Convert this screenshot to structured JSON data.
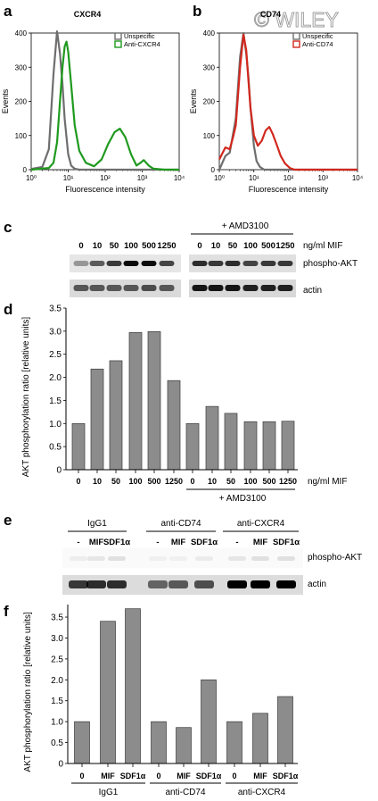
{
  "watermark": "© WILEY",
  "panel_labels": {
    "a": "a",
    "b": "b",
    "c": "c",
    "d": "d",
    "e": "e",
    "f": "f"
  },
  "colors": {
    "unspecific": "#6e6e6e",
    "anti_cxcr4": "#1f9a1f",
    "anti_cd74": "#d2281e",
    "bar": "#8c8c8c"
  },
  "chart_data": [
    {
      "id": "a",
      "type": "line",
      "title": "CXCR4",
      "xlabel": "Fluorescence intensity",
      "ylabel": "Events",
      "xscale": "log",
      "xlim": [
        1,
        10000
      ],
      "ylim": [
        0,
        400
      ],
      "x_ticks": [
        "10⁰",
        "10¹",
        "10²",
        "10³",
        "10⁴"
      ],
      "y_ticks": [
        "0",
        "100",
        "200",
        "300",
        "400"
      ],
      "legend_position": "top-right",
      "series": [
        {
          "name": "Unspecific",
          "color": "#6e6e6e",
          "points": [
            [
              1,
              2
            ],
            [
              2,
              8
            ],
            [
              3,
              60
            ],
            [
              4,
              280
            ],
            [
              5,
              405
            ],
            [
              6,
              340
            ],
            [
              7,
              250
            ],
            [
              8,
              150
            ],
            [
              10,
              45
            ],
            [
              12,
              12
            ],
            [
              15,
              3
            ],
            [
              20,
              0
            ],
            [
              10000,
              0
            ]
          ]
        },
        {
          "name": "Anti-CXCR4",
          "color": "#1f9a1f",
          "points": [
            [
              1,
              0
            ],
            [
              3,
              5
            ],
            [
              4,
              20
            ],
            [
              5,
              80
            ],
            [
              6,
              200
            ],
            [
              7,
              300
            ],
            [
              8,
              360
            ],
            [
              9,
              375
            ],
            [
              10,
              345
            ],
            [
              12,
              250
            ],
            [
              15,
              130
            ],
            [
              20,
              55
            ],
            [
              30,
              20
            ],
            [
              50,
              10
            ],
            [
              80,
              30
            ],
            [
              120,
              75
            ],
            [
              180,
              110
            ],
            [
              250,
              120
            ],
            [
              350,
              95
            ],
            [
              500,
              45
            ],
            [
              700,
              12
            ],
            [
              900,
              20
            ],
            [
              1100,
              28
            ],
            [
              1500,
              12
            ],
            [
              2000,
              3
            ],
            [
              4000,
              0
            ],
            [
              10000,
              0
            ]
          ]
        }
      ]
    },
    {
      "id": "b",
      "type": "line",
      "title": "CD74",
      "xlabel": "Fluorescence intensity",
      "ylabel": "Events",
      "xscale": "log",
      "xlim": [
        1,
        10000
      ],
      "ylim": [
        0,
        400
      ],
      "x_ticks": [
        "10⁰",
        "10¹",
        "10²",
        "10³",
        "10⁴"
      ],
      "y_ticks": [
        "0",
        "100",
        "200",
        "300",
        "400"
      ],
      "legend_position": "top-right",
      "series": [
        {
          "name": "Unspecific",
          "color": "#6e6e6e",
          "points": [
            [
              1,
              0
            ],
            [
              1.5,
              40
            ],
            [
              2,
              50
            ],
            [
              3,
              150
            ],
            [
              4,
              330
            ],
            [
              5,
              400
            ],
            [
              6,
              340
            ],
            [
              7,
              270
            ],
            [
              8,
              180
            ],
            [
              10,
              70
            ],
            [
              12,
              25
            ],
            [
              15,
              8
            ],
            [
              20,
              0
            ],
            [
              10000,
              0
            ]
          ]
        },
        {
          "name": "Anti-CD74",
          "color": "#d2281e",
          "points": [
            [
              1,
              30
            ],
            [
              1.5,
              65
            ],
            [
              2,
              60
            ],
            [
              2.5,
              95
            ],
            [
              3,
              130
            ],
            [
              4,
              300
            ],
            [
              5,
              395
            ],
            [
              6,
              350
            ],
            [
              7,
              260
            ],
            [
              8,
              180
            ],
            [
              10,
              100
            ],
            [
              13,
              70
            ],
            [
              17,
              85
            ],
            [
              22,
              115
            ],
            [
              28,
              125
            ],
            [
              35,
              105
            ],
            [
              45,
              75
            ],
            [
              60,
              40
            ],
            [
              80,
              18
            ],
            [
              110,
              5
            ],
            [
              150,
              0
            ],
            [
              10000,
              0
            ]
          ]
        }
      ]
    },
    {
      "id": "d",
      "type": "bar",
      "ylabel": "AKT phosphorylation ratio [relative units]",
      "ylim": [
        0,
        3.5
      ],
      "y_ticks": [
        "0",
        "0.5",
        "1.0",
        "1.5",
        "2.0",
        "2.5",
        "3.0",
        "3.5"
      ],
      "categories": [
        "0",
        "10",
        "50",
        "100",
        "500",
        "1250",
        "0",
        "10",
        "50",
        "100",
        "500",
        "1250"
      ],
      "values": [
        1.0,
        2.18,
        2.36,
        2.97,
        2.99,
        1.93,
        1.0,
        1.37,
        1.22,
        1.04,
        1.04,
        1.05
      ],
      "x_unit": "ng/ml MIF",
      "group_label": "+ AMD3100"
    },
    {
      "id": "f",
      "type": "bar",
      "ylabel": "AKT phosphorylation ratio [relative units]",
      "ylim": [
        0,
        3.8
      ],
      "y_ticks": [
        "0",
        "0.5",
        "1.0",
        "1.5",
        "2.0",
        "2.5",
        "3.0",
        "3.5"
      ],
      "categories": [
        "0",
        "MIF",
        "SDF1α",
        "0",
        "MIF",
        "SDF1α",
        "0",
        "MIF",
        "SDF1α"
      ],
      "values": [
        1.0,
        3.4,
        3.7,
        1.0,
        0.86,
        2.0,
        1.0,
        1.2,
        1.6
      ],
      "groups": [
        "IgG1",
        "anti-CD74",
        "anti-CXCR4"
      ]
    }
  ],
  "blot_c": {
    "doses": [
      "0",
      "10",
      "50",
      "100",
      "500",
      "1250"
    ],
    "doses_amd": [
      "0",
      "10",
      "50",
      "100",
      "500",
      "1250"
    ],
    "unit": "ng/ml MIF",
    "treatment": "+ AMD3100",
    "row_labels": [
      "phospho-AKT",
      "actin"
    ],
    "phospho_intensity": [
      0.35,
      0.6,
      0.75,
      0.95,
      0.95,
      0.7,
      0.8,
      0.75,
      0.8,
      0.7,
      0.75,
      0.75
    ],
    "actin_intensity": [
      0.6,
      0.6,
      0.6,
      0.6,
      0.65,
      0.6,
      0.9,
      0.9,
      0.9,
      0.85,
      0.85,
      0.85
    ]
  },
  "blot_e": {
    "groups": [
      "IgG1",
      "anti-CD74",
      "anti-CXCR4"
    ],
    "lanes": [
      "-",
      "MIF",
      "SDF1α",
      "-",
      "MIF",
      "SDF1α",
      "-",
      "MIF",
      "SDF1α"
    ],
    "row_labels": [
      "phospho-AKT",
      "actin"
    ],
    "phospho_intensity": [
      0.05,
      0.08,
      0.1,
      0.04,
      0.04,
      0.06,
      0.08,
      0.1,
      0.1
    ],
    "actin_intensity": [
      0.75,
      0.8,
      0.8,
      0.55,
      0.6,
      0.65,
      1.0,
      1.0,
      1.0
    ]
  }
}
